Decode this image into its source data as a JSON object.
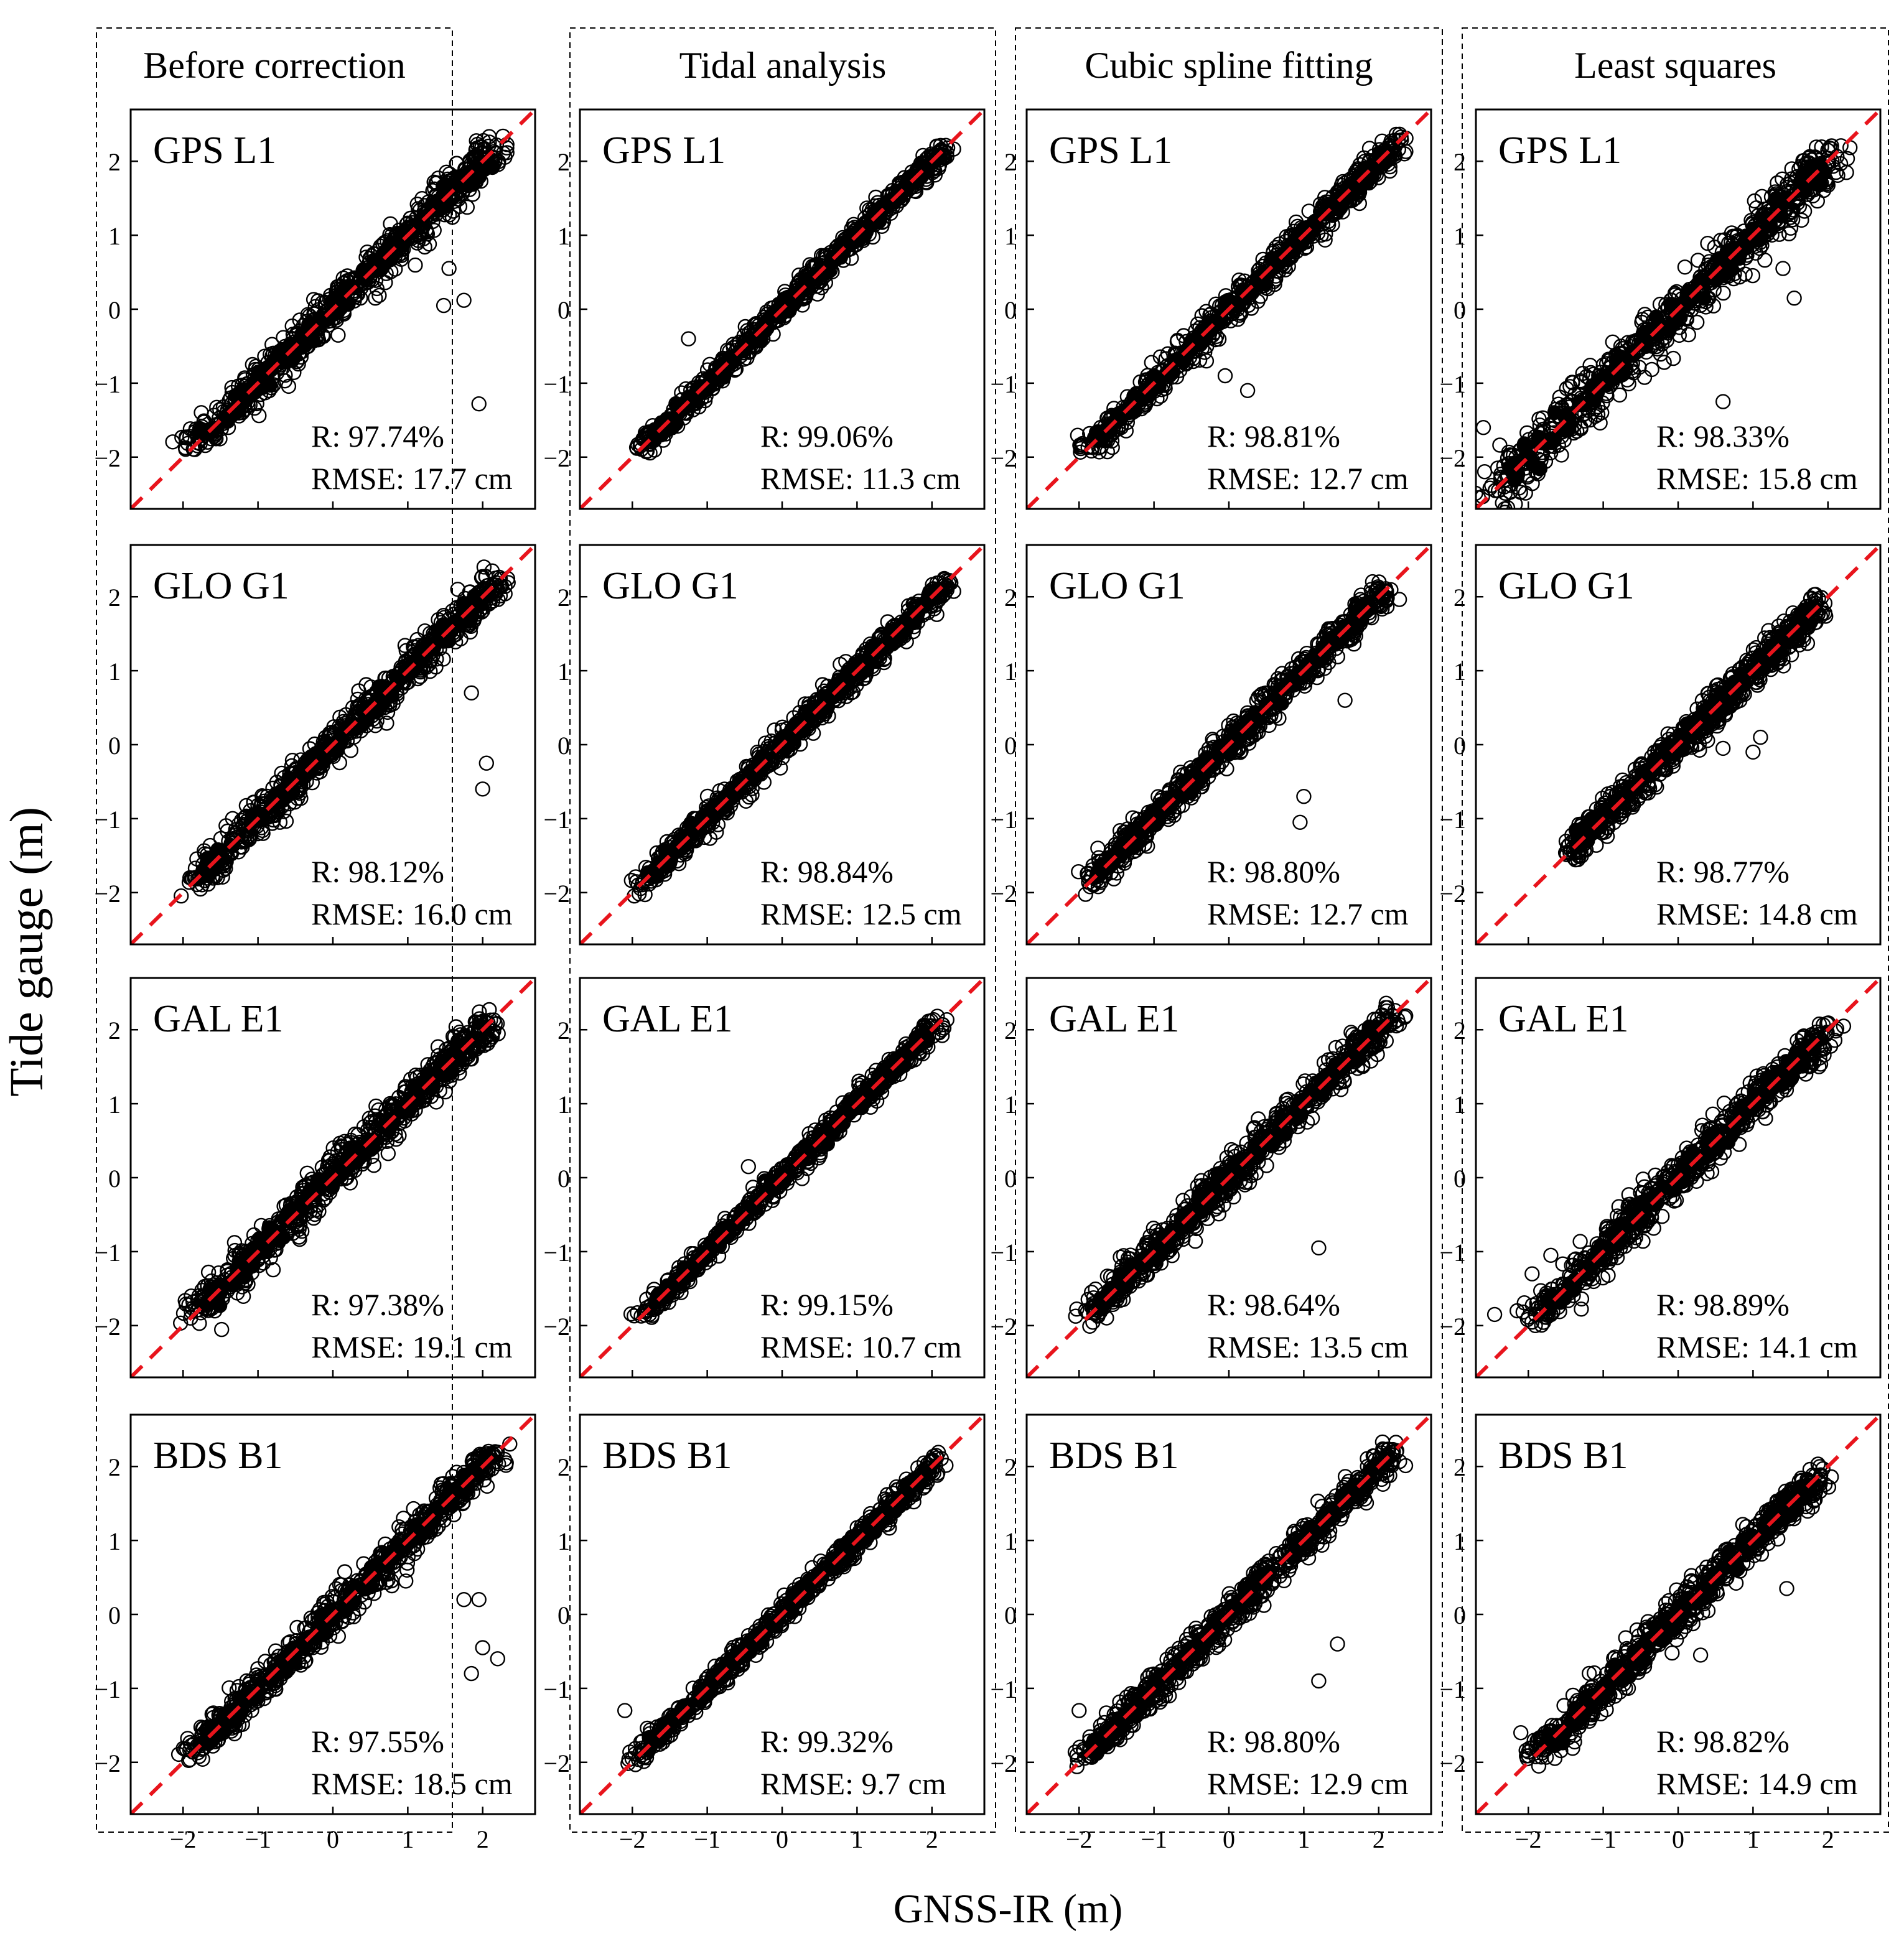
{
  "figure": {
    "ylabel": "Tide gauge (m)",
    "xlabel": "GNSS-IR (m)"
  },
  "columns": [
    "Before correction",
    "Tidal analysis",
    "Cubic spline fitting",
    "Least squares"
  ],
  "rows": [
    "GPS L1",
    "GLO G1",
    "GAL E1",
    "BDS B1"
  ],
  "chart_data": {
    "type": "scatter",
    "xlim": [
      -2.7,
      2.7
    ],
    "ylim": [
      -2.7,
      2.7
    ],
    "x_ticks": [
      -2,
      -1,
      0,
      1,
      2
    ],
    "y_ticks": [
      -2,
      -1,
      0,
      1,
      2
    ],
    "x_tick_labels": [
      "−2",
      "−1",
      "0",
      "1",
      "2"
    ],
    "y_tick_labels": [
      "−2",
      "−1",
      "0",
      "1",
      "2"
    ],
    "reference_line": {
      "slope": 1,
      "intercept": 0,
      "style": "dashed",
      "color": "#e8141c"
    },
    "marker": {
      "shape": "open-circle",
      "color": "#000000"
    },
    "panels": [
      {
        "column": "Before correction",
        "row": "GPS L1",
        "r_text": "R: 97.74%",
        "rmse_text": "RMSE: 17.7 cm",
        "range": [
          -1.9,
          2.2
        ],
        "spread": 0.16,
        "outliers": [
          [
            1.75,
            0.12
          ],
          [
            1.48,
            0.05
          ],
          [
            1.95,
            -1.28
          ],
          [
            1.55,
            0.55
          ]
        ]
      },
      {
        "column": "Tidal analysis",
        "row": "GPS L1",
        "r_text": "R: 99.06%",
        "rmse_text": "RMSE: 11.3 cm",
        "range": [
          -1.9,
          2.2
        ],
        "spread": 0.1,
        "outliers": [
          [
            -1.25,
            -0.4
          ]
        ]
      },
      {
        "column": "Cubic spline fitting",
        "row": "GPS L1",
        "r_text": "R: 98.81%",
        "rmse_text": "RMSE: 12.7 cm",
        "range": [
          -1.9,
          2.3
        ],
        "spread": 0.12,
        "outliers": [
          [
            0.25,
            -1.1
          ],
          [
            -0.05,
            -0.9
          ],
          [
            -0.3,
            -0.7
          ]
        ]
      },
      {
        "column": "Least squares",
        "row": "GPS L1",
        "r_text": "R: 98.33%",
        "rmse_text": "RMSE: 15.8 cm",
        "range": [
          -2.5,
          2.1
        ],
        "spread": 0.2,
        "outliers": [
          [
            0.6,
            -1.25
          ],
          [
            1.55,
            0.15
          ],
          [
            1.4,
            0.55
          ],
          [
            -2.6,
            -1.6
          ],
          [
            -2.1,
            -1.9
          ]
        ]
      },
      {
        "column": "Before correction",
        "row": "GLO G1",
        "r_text": "R: 98.12%",
        "rmse_text": "RMSE: 16.0 cm",
        "range": [
          -1.9,
          2.2
        ],
        "spread": 0.14,
        "outliers": [
          [
            2.0,
            -0.6
          ],
          [
            2.05,
            -0.25
          ],
          [
            1.85,
            0.7
          ]
        ]
      },
      {
        "column": "Tidal analysis",
        "row": "GLO G1",
        "r_text": "R: 98.84%",
        "rmse_text": "RMSE: 12.5 cm",
        "range": [
          -1.9,
          2.2
        ],
        "spread": 0.11,
        "outliers": []
      },
      {
        "column": "Cubic spline fitting",
        "row": "GLO G1",
        "r_text": "R: 98.80%",
        "rmse_text": "RMSE: 12.7 cm",
        "range": [
          -1.9,
          2.1
        ],
        "spread": 0.12,
        "outliers": [
          [
            1.0,
            -0.7
          ],
          [
            0.95,
            -1.05
          ],
          [
            1.55,
            0.6
          ],
          [
            -1.75,
            -1.4
          ]
        ]
      },
      {
        "column": "Least squares",
        "row": "GLO G1",
        "r_text": "R: 98.77%",
        "rmse_text": "RMSE: 14.8 cm",
        "range": [
          -1.5,
          1.9
        ],
        "spread": 0.14,
        "outliers": [
          [
            1.0,
            -0.1
          ],
          [
            1.1,
            0.1
          ],
          [
            0.6,
            -0.05
          ]
        ]
      },
      {
        "column": "Before correction",
        "row": "GAL E1",
        "r_text": "R: 97.38%",
        "rmse_text": "RMSE: 19.1 cm",
        "range": [
          -1.9,
          2.1
        ],
        "spread": 0.16,
        "outliers": []
      },
      {
        "column": "Tidal analysis",
        "row": "GAL E1",
        "r_text": "R: 99.15%",
        "rmse_text": "RMSE: 10.7 cm",
        "range": [
          -1.9,
          2.1
        ],
        "spread": 0.09,
        "outliers": [
          [
            -0.45,
            0.15
          ]
        ]
      },
      {
        "column": "Cubic spline fitting",
        "row": "GAL E1",
        "r_text": "R: 98.64%",
        "rmse_text": "RMSE: 13.5 cm",
        "range": [
          -1.9,
          2.2
        ],
        "spread": 0.14,
        "outliers": [
          [
            1.2,
            -0.95
          ]
        ]
      },
      {
        "column": "Least squares",
        "row": "GAL E1",
        "r_text": "R: 98.89%",
        "rmse_text": "RMSE: 14.1 cm",
        "range": [
          -1.9,
          2.0
        ],
        "spread": 0.15,
        "outliers": [
          [
            -2.45,
            -1.85
          ],
          [
            -2.15,
            -1.8
          ],
          [
            -1.95,
            -1.3
          ],
          [
            -1.7,
            -1.05
          ]
        ]
      },
      {
        "column": "Before correction",
        "row": "BDS B1",
        "r_text": "R: 97.55%",
        "rmse_text": "RMSE: 18.5 cm",
        "range": [
          -1.9,
          2.2
        ],
        "spread": 0.14,
        "outliers": [
          [
            1.85,
            -0.8
          ],
          [
            2.0,
            -0.45
          ],
          [
            2.2,
            -0.6
          ],
          [
            1.75,
            0.2
          ],
          [
            1.95,
            0.2
          ]
        ]
      },
      {
        "column": "Tidal analysis",
        "row": "BDS B1",
        "r_text": "R: 99.32%",
        "rmse_text": "RMSE: 9.7 cm",
        "range": [
          -2.0,
          2.1
        ],
        "spread": 0.09,
        "outliers": [
          [
            -2.1,
            -1.3
          ]
        ]
      },
      {
        "column": "Cubic spline fitting",
        "row": "BDS B1",
        "r_text": "R: 98.80%",
        "rmse_text": "RMSE: 12.9 cm",
        "range": [
          -2.0,
          2.2
        ],
        "spread": 0.13,
        "outliers": [
          [
            1.2,
            -0.9
          ],
          [
            1.45,
            -0.4
          ],
          [
            -2.0,
            -1.3
          ]
        ]
      },
      {
        "column": "Least squares",
        "row": "BDS B1",
        "r_text": "R: 98.82%",
        "rmse_text": "RMSE: 14.9 cm",
        "range": [
          -1.9,
          1.9
        ],
        "spread": 0.15,
        "outliers": [
          [
            1.45,
            0.35
          ],
          [
            0.3,
            -0.55
          ],
          [
            -2.1,
            -1.6
          ]
        ]
      }
    ]
  }
}
